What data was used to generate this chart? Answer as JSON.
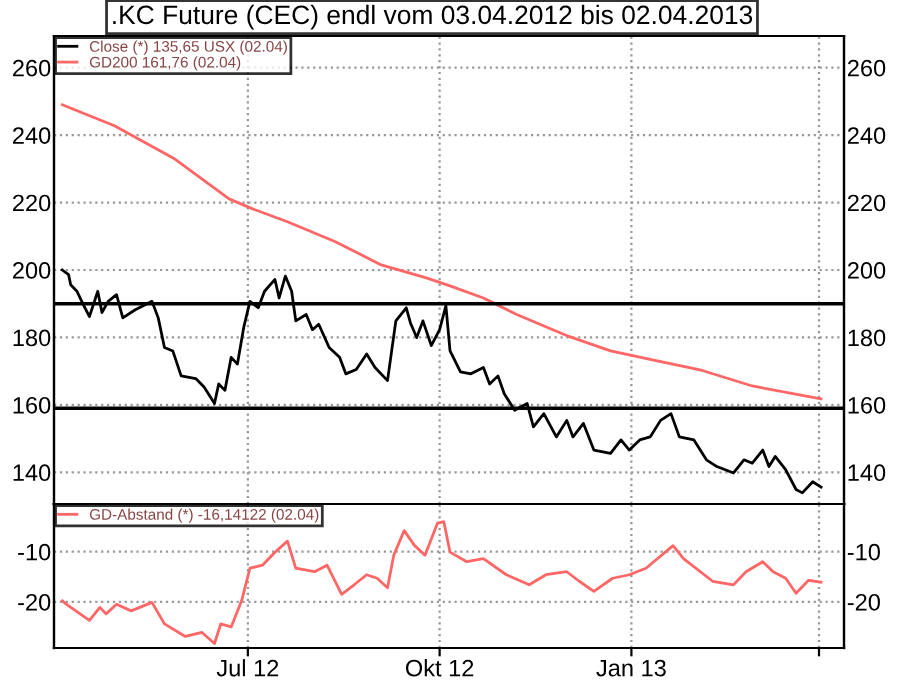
{
  "chart_data": [
    {
      "type": "line",
      "title": ".KC Future (CEC) endl vom 03.04.2012 bis 02.04.2013",
      "xlim": [
        "2012-03-30",
        "2013-04-13"
      ],
      "ylim": [
        130.6,
        269.4
      ],
      "yticks": [
        140,
        160,
        180,
        200,
        220,
        240,
        260
      ],
      "y2lim": [
        130.6,
        269.4
      ],
      "y2ticks": [
        140,
        160,
        180,
        200,
        220,
        240,
        260
      ],
      "tick_labels": "y",
      "grid": true,
      "legend": "top left",
      "ref_lines": [
        {
          "axis": "y",
          "value": 190,
          "color": "#000000"
        },
        {
          "axis": "y",
          "value": 159,
          "color": "#000000"
        }
      ],
      "series": [
        {
          "name": "Close (*) 135,65 USX (02.04)",
          "color": "#000000",
          "x": [
            "2012-04-03",
            "2012-04-06",
            "2012-04-07",
            "2012-04-10",
            "2012-04-13",
            "2012-04-16",
            "2012-04-20",
            "2012-04-22",
            "2012-04-25",
            "2012-04-29",
            "2012-05-02",
            "2012-05-08",
            "2012-05-16",
            "2012-05-19",
            "2012-05-22",
            "2012-05-26",
            "2012-05-30",
            "2012-06-06",
            "2012-06-10",
            "2012-06-15",
            "2012-06-17",
            "2012-06-20",
            "2012-06-23",
            "2012-06-26",
            "2012-06-29",
            "2012-07-02",
            "2012-07-06",
            "2012-07-09",
            "2012-07-14",
            "2012-07-16",
            "2012-07-19",
            "2012-07-22",
            "2012-07-24",
            "2012-07-29",
            "2012-08-01",
            "2012-08-04",
            "2012-08-09",
            "2012-08-14",
            "2012-08-17",
            "2012-08-22",
            "2012-08-27",
            "2012-08-31",
            "2012-09-06",
            "2012-09-10",
            "2012-09-15",
            "2012-09-17",
            "2012-09-20",
            "2012-09-23",
            "2012-09-27",
            "2012-10-01",
            "2012-10-04",
            "2012-10-06",
            "2012-10-11",
            "2012-10-16",
            "2012-10-22",
            "2012-10-25",
            "2012-10-29",
            "2012-11-01",
            "2012-11-06",
            "2012-11-12",
            "2012-11-15",
            "2012-11-20",
            "2012-11-26",
            "2012-12-01",
            "2012-12-04",
            "2012-12-09",
            "2012-12-14",
            "2012-12-22",
            "2012-12-27",
            "2012-12-31",
            "2013-01-05",
            "2013-01-10",
            "2013-01-15",
            "2013-01-20",
            "2013-01-24",
            "2013-01-31",
            "2013-02-06",
            "2013-02-11",
            "2013-02-19",
            "2013-02-24",
            "2013-02-28",
            "2013-03-05",
            "2013-03-08",
            "2013-03-11",
            "2013-03-16",
            "2013-03-21",
            "2013-03-24",
            "2013-03-29",
            "2013-04-02"
          ],
          "values": [
            200,
            198.6,
            195.6,
            193.7,
            189.8,
            186.2,
            193.7,
            187.4,
            190.7,
            192.7,
            185.8,
            188.2,
            190.7,
            185.8,
            177,
            176,
            168.6,
            167.8,
            165.3,
            160.4,
            166.2,
            164.3,
            174.1,
            172.1,
            182.9,
            190.7,
            188.8,
            193.7,
            197.2,
            191.7,
            198.2,
            193.7,
            184.9,
            186.8,
            182.3,
            183.9,
            177,
            174.1,
            169.2,
            170.5,
            175.1,
            171.1,
            167.2,
            184.9,
            188.8,
            184.3,
            180,
            184.9,
            177.6,
            182.3,
            189.4,
            176,
            169.8,
            169.2,
            171.1,
            166.2,
            168.6,
            163.3,
            158.4,
            160.4,
            153.5,
            157.4,
            150.5,
            155.4,
            150.5,
            154.5,
            146.6,
            145.6,
            149.6,
            146.6,
            149.6,
            150.5,
            155.4,
            157.4,
            150.5,
            149.6,
            143.7,
            141.7,
            139.8,
            143.7,
            142.7,
            146.6,
            141.7,
            144.7,
            140.8,
            134.9,
            133.9,
            137.2,
            135.6
          ]
        },
        {
          "name": "GD200 161,76 (02.04)",
          "color": "#ff6666",
          "x": [
            "2012-04-03",
            "2012-04-28",
            "2012-05-27",
            "2012-06-22",
            "2012-07-03",
            "2012-07-20",
            "2012-08-12",
            "2012-09-03",
            "2012-09-25",
            "2012-10-06",
            "2012-10-22",
            "2012-11-07",
            "2012-12-02",
            "2012-12-22",
            "2013-01-10",
            "2013-02-04",
            "2013-02-28",
            "2013-04-02"
          ],
          "values": [
            249,
            242.8,
            232.9,
            221.1,
            218.2,
            214.3,
            208.4,
            201.5,
            197.6,
            195.3,
            191.7,
            186.8,
            180.3,
            176,
            173.5,
            170.2,
            165.6,
            161.8
          ]
        }
      ]
    },
    {
      "type": "line",
      "xlim": [
        "2012-03-30",
        "2013-04-13"
      ],
      "xticks": [
        {
          "value": "2012-07-01",
          "label": "Jul 12"
        },
        {
          "value": "2012-10-01",
          "label": "Okt 12"
        },
        {
          "value": "2013-01-01",
          "label": "Jan 13"
        },
        {
          "value": "2013-04-01",
          "label": null
        }
      ],
      "ylim": [
        -29.2,
        -0.5
      ],
      "yticks": [
        -10,
        -20
      ],
      "y2lim": [
        -29.2,
        -0.5
      ],
      "y2ticks": [
        -10,
        -20
      ],
      "grid": true,
      "legend": "top left",
      "series": [
        {
          "name": "GD-Abstand (*) -16,14122 (02.04)",
          "color": "#ff6666",
          "x": [
            "2012-04-03",
            "2012-04-05",
            "2012-04-16",
            "2012-04-21",
            "2012-04-24",
            "2012-04-29",
            "2012-05-06",
            "2012-05-16",
            "2012-05-22",
            "2012-06-01",
            "2012-06-09",
            "2012-06-15",
            "2012-06-18",
            "2012-06-23",
            "2012-06-28",
            "2012-07-02",
            "2012-07-08",
            "2012-07-14",
            "2012-07-20",
            "2012-07-24",
            "2012-08-02",
            "2012-08-08",
            "2012-08-15",
            "2012-08-21",
            "2012-08-27",
            "2012-09-01",
            "2012-09-06",
            "2012-09-09",
            "2012-09-14",
            "2012-09-19",
            "2012-09-24",
            "2012-09-30",
            "2012-10-03",
            "2012-10-06",
            "2012-10-14",
            "2012-10-22",
            "2012-11-02",
            "2012-11-13",
            "2012-11-21",
            "2012-12-01",
            "2012-12-07",
            "2012-12-14",
            "2012-12-23",
            "2012-12-31",
            "2013-01-08",
            "2013-01-21",
            "2013-01-26",
            "2013-02-09",
            "2013-02-19",
            "2013-02-25",
            "2013-03-05",
            "2013-03-10",
            "2013-03-16",
            "2013-03-21",
            "2013-03-27",
            "2013-04-02"
          ],
          "values": [
            -19.8,
            -20.5,
            -23.7,
            -21.1,
            -22.4,
            -20.5,
            -21.8,
            -20.1,
            -24.4,
            -26.9,
            -26.1,
            -28.3,
            -24.4,
            -25,
            -19.8,
            -13.3,
            -12.7,
            -10.1,
            -7.9,
            -13.3,
            -14,
            -12.7,
            -18.5,
            -16.6,
            -14.6,
            -15.3,
            -17.2,
            -10.7,
            -5.8,
            -8.8,
            -10.7,
            -4.3,
            -4,
            -10.1,
            -12,
            -11.4,
            -14.6,
            -16.6,
            -14.6,
            -14,
            -15.9,
            -17.9,
            -15.3,
            -14.6,
            -13.3,
            -8.8,
            -11.4,
            -15.9,
            -16.6,
            -14,
            -12,
            -14,
            -15.3,
            -18.3,
            -15.7,
            -16.1
          ]
        }
      ]
    }
  ]
}
